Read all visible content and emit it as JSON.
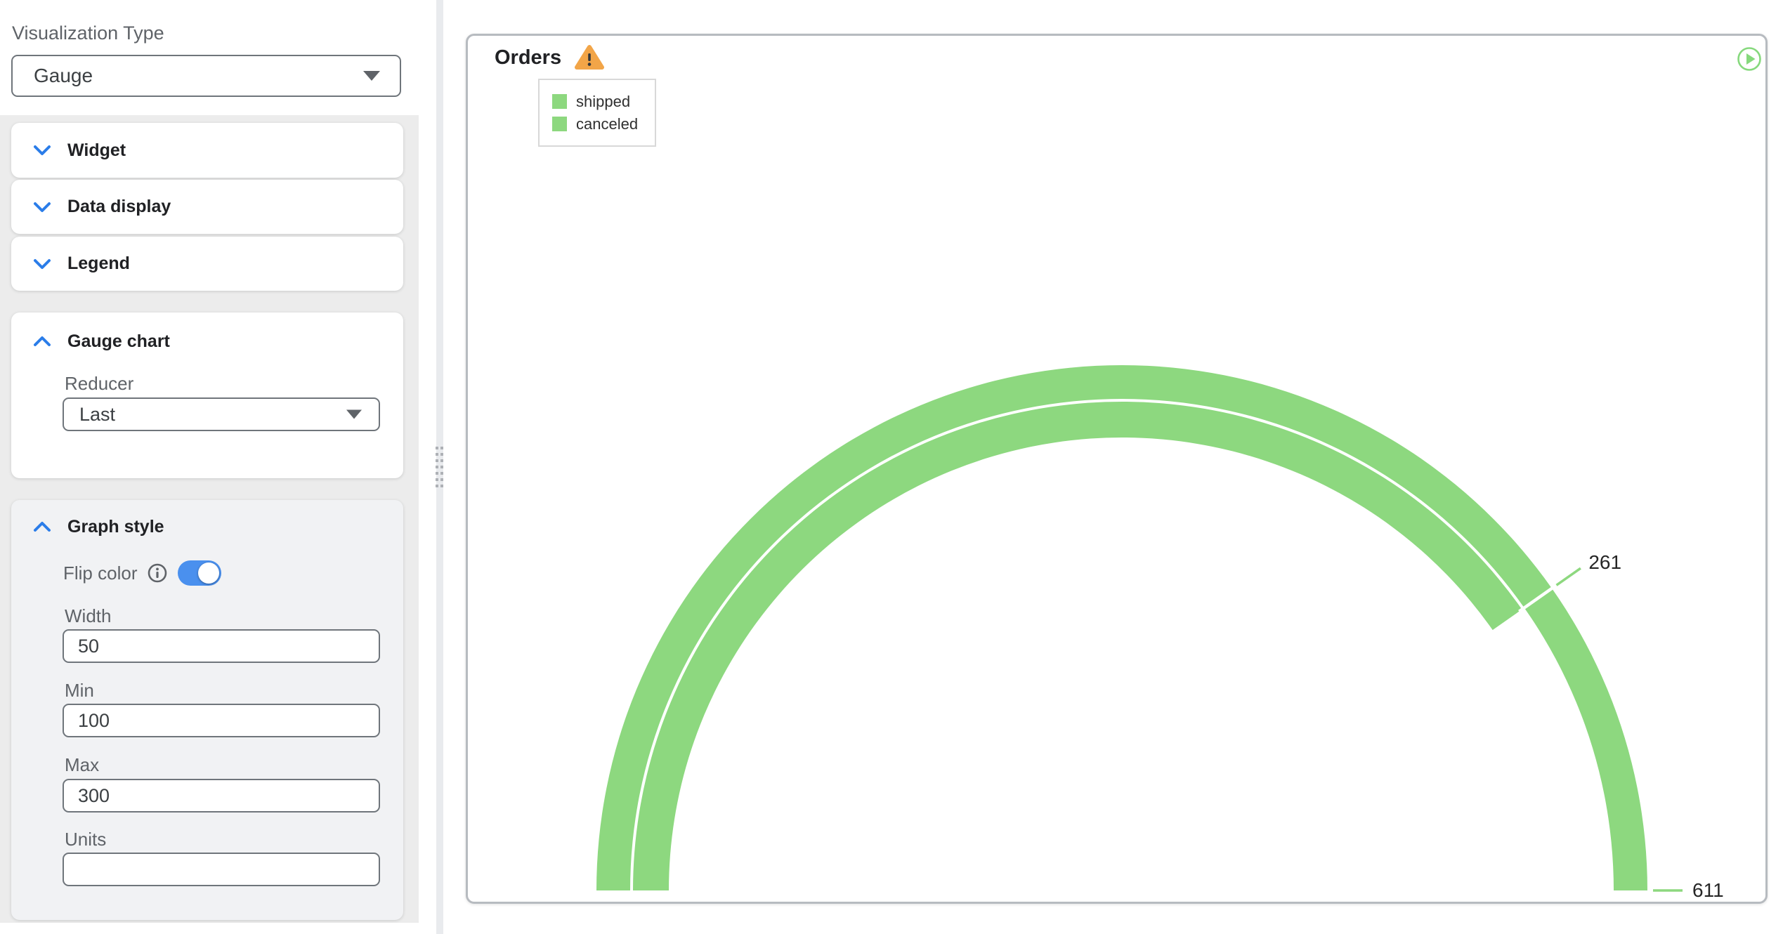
{
  "colors": {
    "accent_blue": "#2b7de9",
    "toggle_blue": "#4a90ee",
    "arc_green": "#8dd87f",
    "warning_orange": "#f2a548",
    "run_green": "#86d97d"
  },
  "icons": {
    "section_collapsed": "chevron-down",
    "section_expanded": "chevron-up",
    "dropdown": "caret-down",
    "flip_color_help": "info-circle",
    "panel_warning": "warning-triangle",
    "panel_run": "play-circle",
    "splitter": "drag-dots"
  },
  "sidebar": {
    "visualization_type_label": "Visualization Type",
    "visualization_type_value": "Gauge",
    "sections": [
      {
        "label": "Widget"
      },
      {
        "label": "Data display"
      },
      {
        "label": "Legend"
      }
    ],
    "gauge_chart": {
      "title": "Gauge chart",
      "reducer_label": "Reducer",
      "reducer_value": "Last"
    },
    "graph_style": {
      "title": "Graph style",
      "flip_color_label": "Flip color",
      "flip_color_on": true,
      "width_label": "Width",
      "width_value": "50",
      "min_label": "Min",
      "min_value": "100",
      "max_label": "Max",
      "max_value": "300",
      "units_label": "Units",
      "units_value": ""
    }
  },
  "panel": {
    "title": "Orders"
  },
  "chart_data": {
    "type": "gauge",
    "title": "Orders",
    "shape": "semicircle",
    "min": 100,
    "max": 300,
    "series": [
      {
        "name": "shipped",
        "value": 611,
        "label": "611",
        "ring": "outer",
        "clamped_to_max": true
      },
      {
        "name": "canceled",
        "value": 261,
        "label": "261",
        "ring": "inner"
      }
    ],
    "legend": [
      "shipped",
      "canceled"
    ],
    "legend_position": "top-left",
    "arc_color": "#8dd87f",
    "value_label_color": "#262626"
  }
}
